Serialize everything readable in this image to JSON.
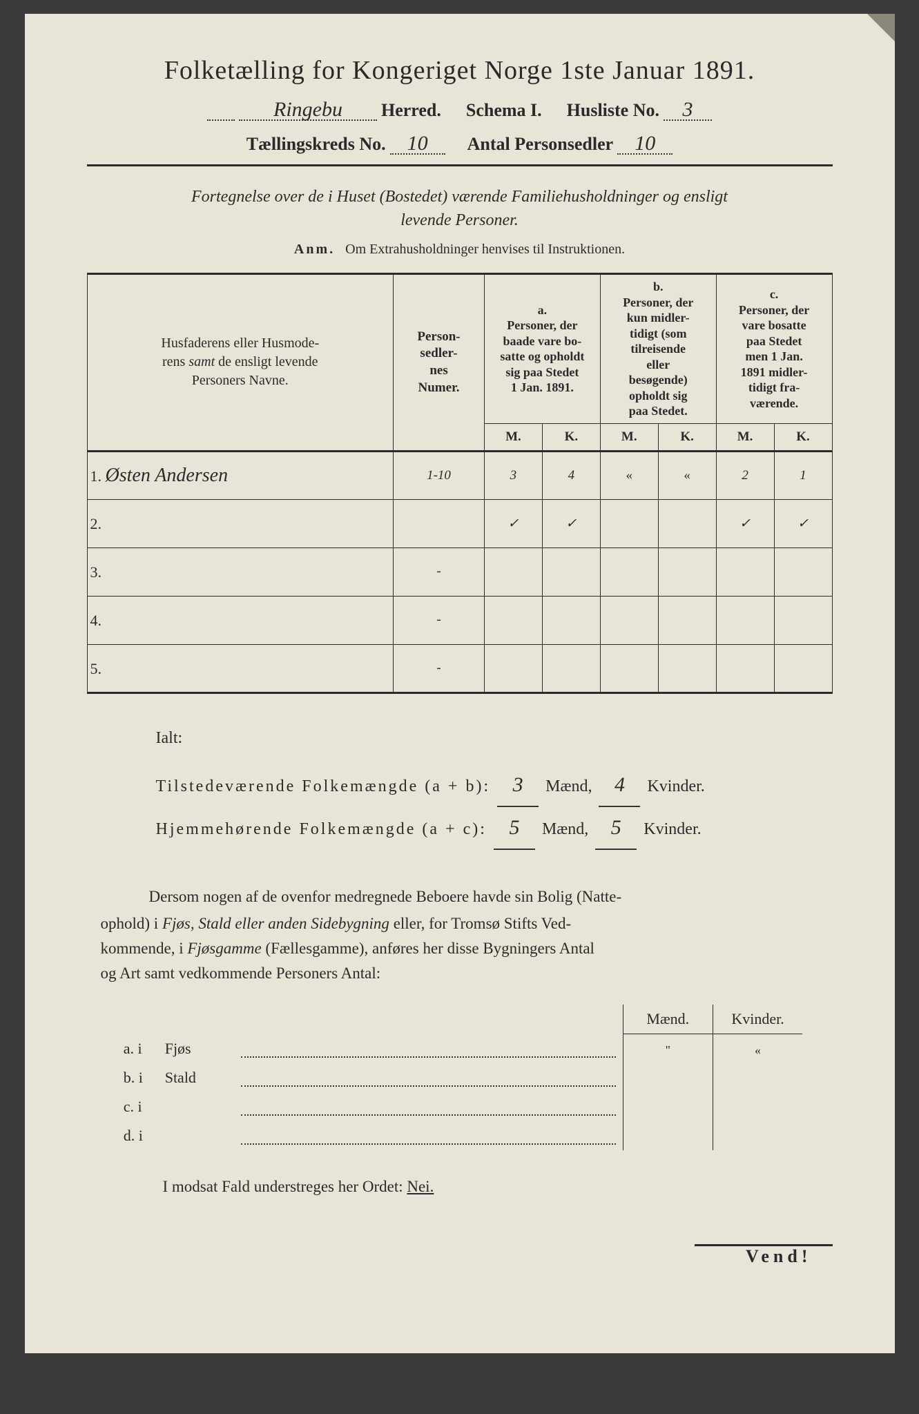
{
  "header": {
    "title": "Folketælling for Kongeriget Norge 1ste Januar 1891.",
    "herred_value": "Ringebu",
    "herred_label": "Herred.",
    "schema_label": "Schema I.",
    "husliste_label": "Husliste No.",
    "husliste_no": "3",
    "kreds_label": "Tællingskreds No.",
    "kreds_no": "10",
    "antal_label": "Antal Personsedler",
    "antal_value": "10"
  },
  "fortegnelse": {
    "line1": "Fortegnelse over de i Huset (Bostedet) værende Familiehusholdninger og ensligt",
    "line2": "levende Personer.",
    "anm_lead": "Anm.",
    "anm_text": "Om Extrahusholdninger henvises til Instruktionen."
  },
  "table": {
    "col_names_1": "Husfaderens eller Husmode-",
    "col_names_2": "rens ",
    "col_names_2i": "samt",
    "col_names_2b": " de ensligt levende",
    "col_names_3": "Personers Navne.",
    "col_num_1": "Person-",
    "col_num_2": "sedler-",
    "col_num_3": "nes",
    "col_num_4": "Numer.",
    "a_label": "a.",
    "a_1": "Personer, der",
    "a_2": "baade vare bo-",
    "a_3": "satte og opholdt",
    "a_4": "sig paa Stedet",
    "a_5": "1 Jan. 1891.",
    "b_label": "b.",
    "b_1": "Personer, der",
    "b_2": "kun midler-",
    "b_3": "tidigt (som",
    "b_4": "tilreisende",
    "b_5": "eller",
    "b_6": "besøgende)",
    "b_7": "opholdt sig",
    "b_8": "paa Stedet.",
    "c_label": "c.",
    "c_1": "Personer, der",
    "c_2": "vare bosatte",
    "c_3": "paa Stedet",
    "c_4": "men 1 Jan.",
    "c_5": "1891 midler-",
    "c_6": "tidigt fra-",
    "c_7": "værende.",
    "m": "M.",
    "k": "K.",
    "rows": [
      {
        "n": "1.",
        "name": "Østen Andersen",
        "num": "1-10",
        "am": "3",
        "ak": "4",
        "bm": "«",
        "bk": "«",
        "cm": "2",
        "ck": "1"
      },
      {
        "n": "2.",
        "name": "",
        "num": "",
        "am": "✓",
        "ak": "✓",
        "bm": "",
        "bk": "",
        "cm": "✓",
        "ck": "✓"
      },
      {
        "n": "3.",
        "name": "",
        "num": "-",
        "am": "",
        "ak": "",
        "bm": "",
        "bk": "",
        "cm": "",
        "ck": ""
      },
      {
        "n": "4.",
        "name": "",
        "num": "-",
        "am": "",
        "ak": "",
        "bm": "",
        "bk": "",
        "cm": "",
        "ck": ""
      },
      {
        "n": "5.",
        "name": "",
        "num": "-",
        "am": "",
        "ak": "",
        "bm": "",
        "bk": "",
        "cm": "",
        "ck": ""
      }
    ]
  },
  "totals": {
    "ialt": "Ialt:",
    "tilstede_label": "Tilstedeværende Folkemængde (a + b):",
    "hjemme_label": "Hjemmehørende Folkemængde (a + c):",
    "maend": "Mænd,",
    "kvinder": "Kvinder.",
    "t_m": "3",
    "t_k": "4",
    "h_m": "5",
    "h_k": "5"
  },
  "dersom": {
    "p1": "Dersom nogen af de ovenfor medregnede Beboere havde sin Bolig (Natte-",
    "p2a": "ophold) i ",
    "p2i": "Fjøs, Stald eller anden Sidebygning",
    "p2b": " eller, for Tromsø Stifts Ved-",
    "p3a": "kommende, i ",
    "p3i": "Fjøsgamme",
    "p3b": " (Fællesgamme), anføres her disse Bygningers Antal",
    "p4": "og Art samt vedkommende Personers Antal:"
  },
  "bygning": {
    "maend": "Mænd.",
    "kvinder": "Kvinder.",
    "rows": [
      {
        "l": "a.  i",
        "t": "Fjøs",
        "m": "\"",
        "k": "«"
      },
      {
        "l": "b.  i",
        "t": "Stald",
        "m": "",
        "k": ""
      },
      {
        "l": "c.  i",
        "t": "",
        "m": "",
        "k": ""
      },
      {
        "l": "d.  i",
        "t": "",
        "m": "",
        "k": ""
      }
    ]
  },
  "modsat": {
    "text": "I modsat Fald understreges her Ordet: ",
    "nei": "Nei."
  },
  "vend": "Vend!",
  "colors": {
    "paper": "#e8e5d8",
    "ink": "#2a2a2a",
    "background": "#3a3a3a"
  }
}
